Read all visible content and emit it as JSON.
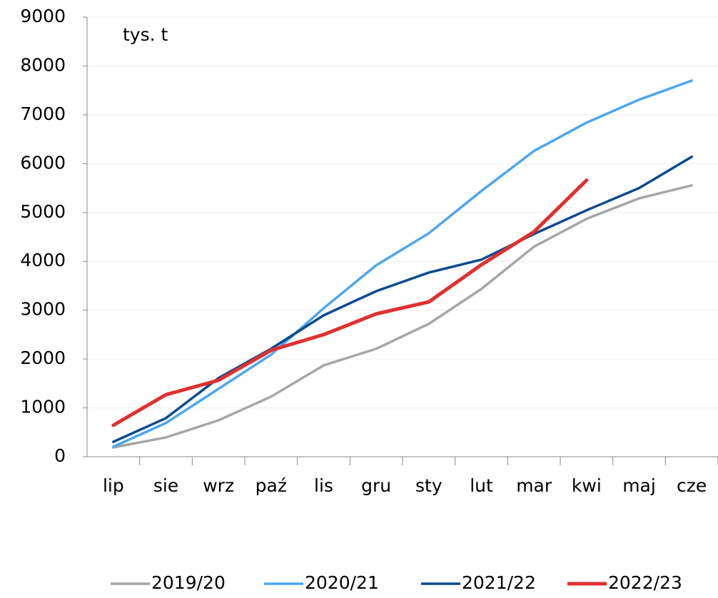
{
  "chart_data": {
    "type": "line",
    "annotation": "tys. t",
    "categories": [
      "lip",
      "sie",
      "wrz",
      "paź",
      "lis",
      "gru",
      "sty",
      "lut",
      "mar",
      "kwi",
      "maj",
      "cze"
    ],
    "series": [
      {
        "name": "2019/20",
        "color": "#a6a6a6",
        "values": [
          190,
          395,
          745,
          1230,
          1870,
          2210,
          2720,
          3435,
          4300,
          4870,
          5290,
          5555
        ]
      },
      {
        "name": "2020/21",
        "color": "#4da6f0",
        "values": [
          205,
          690,
          1390,
          2090,
          3040,
          3920,
          4575,
          5440,
          6260,
          6840,
          7310,
          7700
        ]
      },
      {
        "name": "2021/22",
        "color": "#0b4a8f",
        "values": [
          305,
          790,
          1610,
          2210,
          2895,
          3390,
          3770,
          4035,
          4560,
          5045,
          5500,
          6140
        ]
      },
      {
        "name": "2022/23",
        "color": "#e03030",
        "values": [
          645,
          1270,
          1565,
          2180,
          2500,
          2925,
          3170,
          3930,
          4605,
          5660,
          null,
          null
        ]
      }
    ],
    "ylim": [
      0,
      9000
    ],
    "yticks": [
      0,
      1000,
      2000,
      3000,
      4000,
      5000,
      6000,
      7000,
      8000,
      9000
    ],
    "grid": true,
    "legend": "bottom"
  }
}
